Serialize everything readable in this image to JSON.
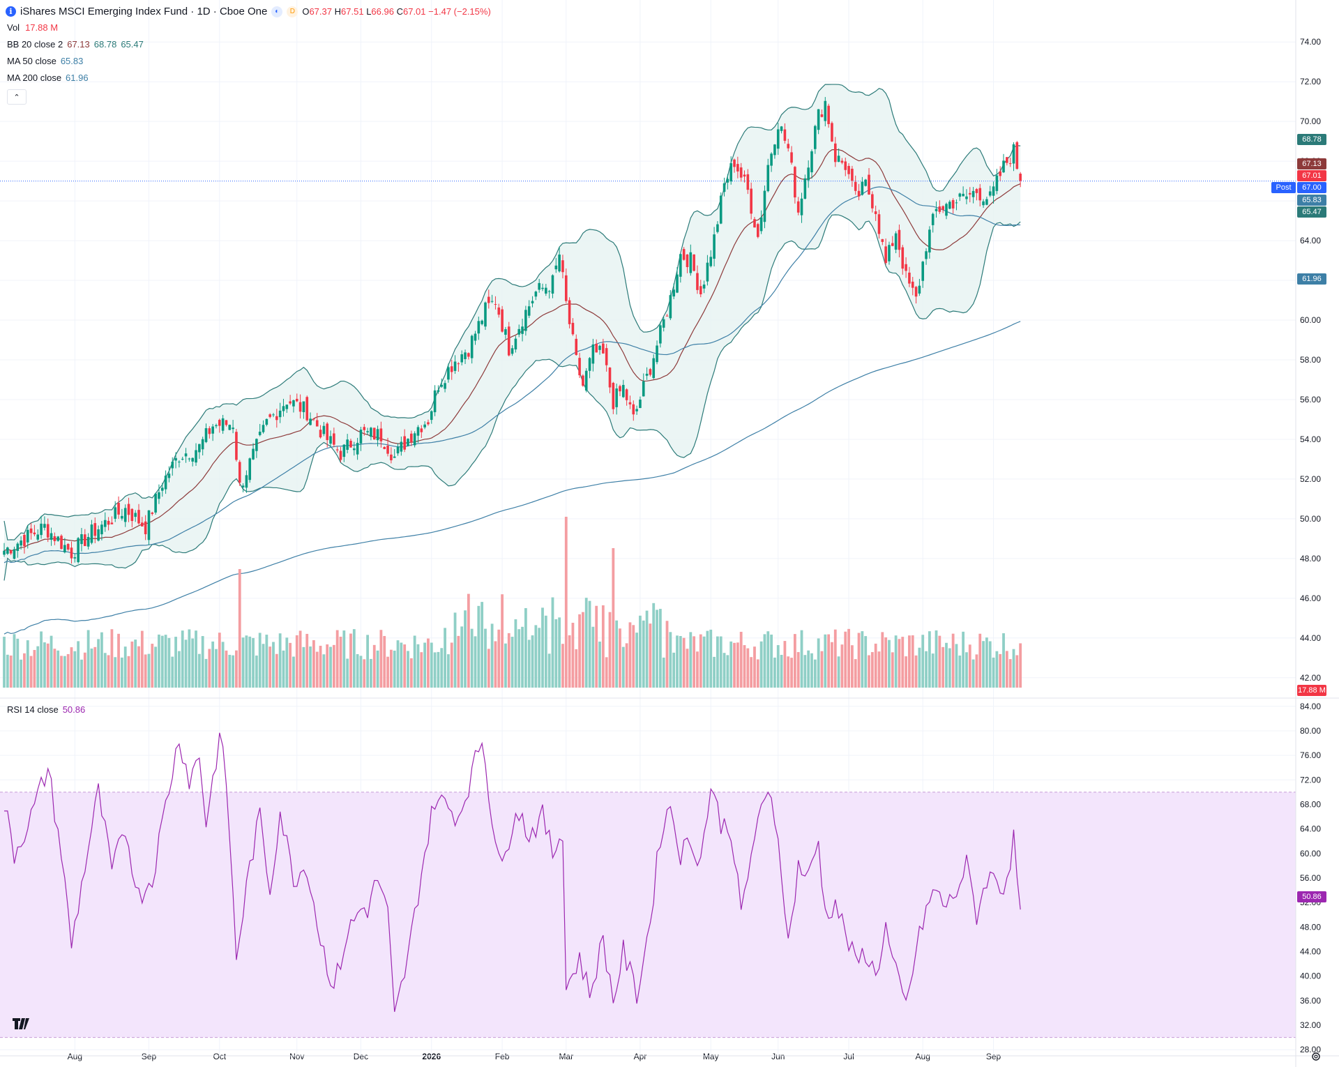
{
  "header": {
    "symbol_name": "iShares MSCI Emerging Index Fund · 1D · Cboe One",
    "info_icon": "i",
    "open_label": "O",
    "open": "67.37",
    "high_label": "H",
    "high": "67.51",
    "low_label": "L",
    "low": "66.96",
    "close_label": "C",
    "close": "67.01",
    "change": "−1.47 (−2.15%)",
    "badge_1": "◐",
    "badge_2": "D"
  },
  "indicators": {
    "vol_label": "Vol",
    "vol_value": "17.88 M",
    "bb_label": "BB 20 close 2",
    "bb_basis": "67.13",
    "bb_upper": "68.78",
    "bb_lower": "65.47",
    "ma50_label": "MA 50 close",
    "ma50_value": "65.83",
    "ma200_label": "MA 200 close",
    "ma200_value": "61.96",
    "rsi_label": "RSI 14 close",
    "rsi_value": "50.86",
    "collapse_icon": "⌃"
  },
  "price_labels": {
    "bb_upper": "68.78",
    "bb_basis": "67.13",
    "last": "67.01",
    "post": "67.00",
    "post_tag": "Post",
    "ma50": "65.83",
    "bb_lower": "65.47",
    "ma200": "61.96",
    "volume": "17.88 M",
    "rsi": "50.86"
  },
  "colors": {
    "up": "#089981",
    "down": "#f23645",
    "bb": "#2b7a78",
    "bb_basis": "#8d3a3a",
    "bb_fill": "#e6f2f1",
    "ma": "#3d7fa6",
    "rsi": "#9c27b0",
    "rsi_band": "#f3e5fc",
    "vol_up": "#8fcfc6",
    "vol_down": "#f49da1",
    "post": "#2962ff",
    "label_up": "#089981"
  },
  "chart_data": {
    "type": "candlestick",
    "title": "iShares MSCI Emerging Index Fund · 1D · Cboe One",
    "price_axis_ticks": [
      "74.00",
      "72.00",
      "70.00",
      "68.00",
      "66.00",
      "64.00",
      "62.00",
      "60.00",
      "58.00",
      "56.00",
      "54.00",
      "52.00",
      "50.00",
      "48.00",
      "46.00",
      "44.00",
      "42.00"
    ],
    "price_ylim": [
      41.5,
      74.5
    ],
    "rsi_axis_ticks": [
      "84.00",
      "80.00",
      "76.00",
      "72.00",
      "68.00",
      "64.00",
      "60.00",
      "56.00",
      "52.00",
      "48.00",
      "44.00",
      "40.00",
      "36.00",
      "32.00",
      "28.00"
    ],
    "rsi_ylim": [
      27,
      85
    ],
    "rsi_bands": [
      30,
      70
    ],
    "x_ticks": [
      {
        "label": "Aug",
        "i": 21
      },
      {
        "label": "Sep",
        "i": 43
      },
      {
        "label": "Oct",
        "i": 64
      },
      {
        "label": "Nov",
        "i": 87
      },
      {
        "label": "Dec",
        "i": 106
      },
      {
        "label": "2026",
        "i": 127
      },
      {
        "label": "Feb",
        "i": 148
      },
      {
        "label": "Mar",
        "i": 167
      },
      {
        "label": "Apr",
        "i": 189
      },
      {
        "label": "May",
        "i": 210
      },
      {
        "label": "Jun",
        "i": 230
      },
      {
        "label": "Jul",
        "i": 251
      },
      {
        "label": "Aug",
        "i": 273
      },
      {
        "label": "Sep",
        "i": 294
      }
    ],
    "n_bars": 303,
    "close_anchors": [
      [
        0,
        48.4
      ],
      [
        12,
        49.6
      ],
      [
        20,
        48.3
      ],
      [
        26,
        49.3
      ],
      [
        36,
        50.5
      ],
      [
        42,
        49.6
      ],
      [
        47,
        51.8
      ],
      [
        52,
        53.2
      ],
      [
        58,
        53.6
      ],
      [
        62,
        54.7
      ],
      [
        68,
        54.8
      ],
      [
        70,
        51.6
      ],
      [
        78,
        54.8
      ],
      [
        84,
        56.0
      ],
      [
        90,
        55.4
      ],
      [
        96,
        54.0
      ],
      [
        100,
        53.3
      ],
      [
        106,
        54.3
      ],
      [
        112,
        54.2
      ],
      [
        116,
        53.1
      ],
      [
        122,
        54.5
      ],
      [
        126,
        55.0
      ],
      [
        129,
        56.8
      ],
      [
        134,
        58.0
      ],
      [
        138,
        58.6
      ],
      [
        143,
        60.5
      ],
      [
        146,
        61.0
      ],
      [
        150,
        58.6
      ],
      [
        154,
        60.1
      ],
      [
        158,
        61.4
      ],
      [
        163,
        61.9
      ],
      [
        165,
        63.3
      ],
      [
        167,
        60.8
      ],
      [
        170,
        57.9
      ],
      [
        172,
        56.7
      ],
      [
        175,
        58.4
      ],
      [
        178,
        58.2
      ],
      [
        181,
        55.9
      ],
      [
        184,
        56.6
      ],
      [
        187,
        55.0
      ],
      [
        191,
        57.1
      ],
      [
        195,
        59.3
      ],
      [
        198,
        61.1
      ],
      [
        201,
        63.3
      ],
      [
        204,
        63.0
      ],
      [
        207,
        61.4
      ],
      [
        211,
        64.1
      ],
      [
        214,
        66.8
      ],
      [
        217,
        68.0
      ],
      [
        221,
        66.5
      ],
      [
        224,
        64.2
      ],
      [
        227,
        67.8
      ],
      [
        230,
        70.0
      ],
      [
        233,
        68.6
      ],
      [
        236,
        65.5
      ],
      [
        239,
        68.1
      ],
      [
        242,
        70.3
      ],
      [
        244,
        71.0
      ],
      [
        247,
        68.2
      ],
      [
        250,
        67.8
      ],
      [
        253,
        66.1
      ],
      [
        256,
        66.8
      ],
      [
        259,
        65.6
      ],
      [
        262,
        62.8
      ],
      [
        265,
        64.5
      ],
      [
        268,
        62.1
      ],
      [
        271,
        61.0
      ],
      [
        274,
        63.8
      ],
      [
        277,
        65.5
      ],
      [
        281,
        65.9
      ],
      [
        286,
        66.2
      ],
      [
        289,
        66.5
      ],
      [
        293,
        66.1
      ],
      [
        297,
        67.7
      ],
      [
        300,
        68.5
      ],
      [
        302,
        67.01
      ]
    ],
    "rsi_anchors": [
      [
        0,
        68
      ],
      [
        3,
        60
      ],
      [
        8,
        66
      ],
      [
        13,
        74
      ],
      [
        17,
        60
      ],
      [
        20,
        45
      ],
      [
        24,
        58
      ],
      [
        28,
        70
      ],
      [
        32,
        57
      ],
      [
        36,
        64
      ],
      [
        40,
        53
      ],
      [
        44,
        56
      ],
      [
        48,
        68
      ],
      [
        52,
        79
      ],
      [
        55,
        72
      ],
      [
        58,
        76
      ],
      [
        60,
        65
      ],
      [
        64,
        79
      ],
      [
        66,
        72
      ],
      [
        69,
        43
      ],
      [
        73,
        58
      ],
      [
        76,
        66
      ],
      [
        79,
        54
      ],
      [
        82,
        67
      ],
      [
        86,
        56
      ],
      [
        90,
        58
      ],
      [
        94,
        46
      ],
      [
        98,
        38
      ],
      [
        102,
        47
      ],
      [
        106,
        51
      ],
      [
        108,
        51
      ],
      [
        111,
        56
      ],
      [
        114,
        50
      ],
      [
        116,
        33
      ],
      [
        120,
        43
      ],
      [
        124,
        57
      ],
      [
        128,
        69
      ],
      [
        131,
        68
      ],
      [
        135,
        66
      ],
      [
        139,
        73
      ],
      [
        142,
        79
      ],
      [
        145,
        66
      ],
      [
        148,
        57
      ],
      [
        152,
        68
      ],
      [
        156,
        63
      ],
      [
        160,
        66
      ],
      [
        163,
        60
      ],
      [
        166,
        64
      ],
      [
        167,
        38
      ],
      [
        171,
        43
      ],
      [
        174,
        37
      ],
      [
        178,
        46
      ],
      [
        181,
        36
      ],
      [
        184,
        44
      ],
      [
        188,
        37
      ],
      [
        192,
        49
      ],
      [
        195,
        63
      ],
      [
        198,
        68
      ],
      [
        201,
        60
      ],
      [
        204,
        62
      ],
      [
        207,
        59
      ],
      [
        210,
        71
      ],
      [
        213,
        65
      ],
      [
        216,
        64
      ],
      [
        219,
        50
      ],
      [
        223,
        63
      ],
      [
        226,
        68
      ],
      [
        228,
        70
      ],
      [
        231,
        58
      ],
      [
        233,
        45
      ],
      [
        236,
        58
      ],
      [
        239,
        56
      ],
      [
        242,
        62
      ],
      [
        244,
        50
      ],
      [
        247,
        52
      ],
      [
        250,
        47
      ],
      [
        253,
        42
      ],
      [
        256,
        44
      ],
      [
        259,
        40
      ],
      [
        262,
        48
      ],
      [
        264,
        42
      ],
      [
        268,
        35
      ],
      [
        271,
        44
      ],
      [
        274,
        51
      ],
      [
        277,
        54
      ],
      [
        280,
        51
      ],
      [
        283,
        54
      ],
      [
        286,
        58
      ],
      [
        289,
        50
      ],
      [
        292,
        56
      ],
      [
        295,
        56
      ],
      [
        297,
        54
      ],
      [
        300,
        62
      ],
      [
        302,
        50.86
      ]
    ]
  }
}
